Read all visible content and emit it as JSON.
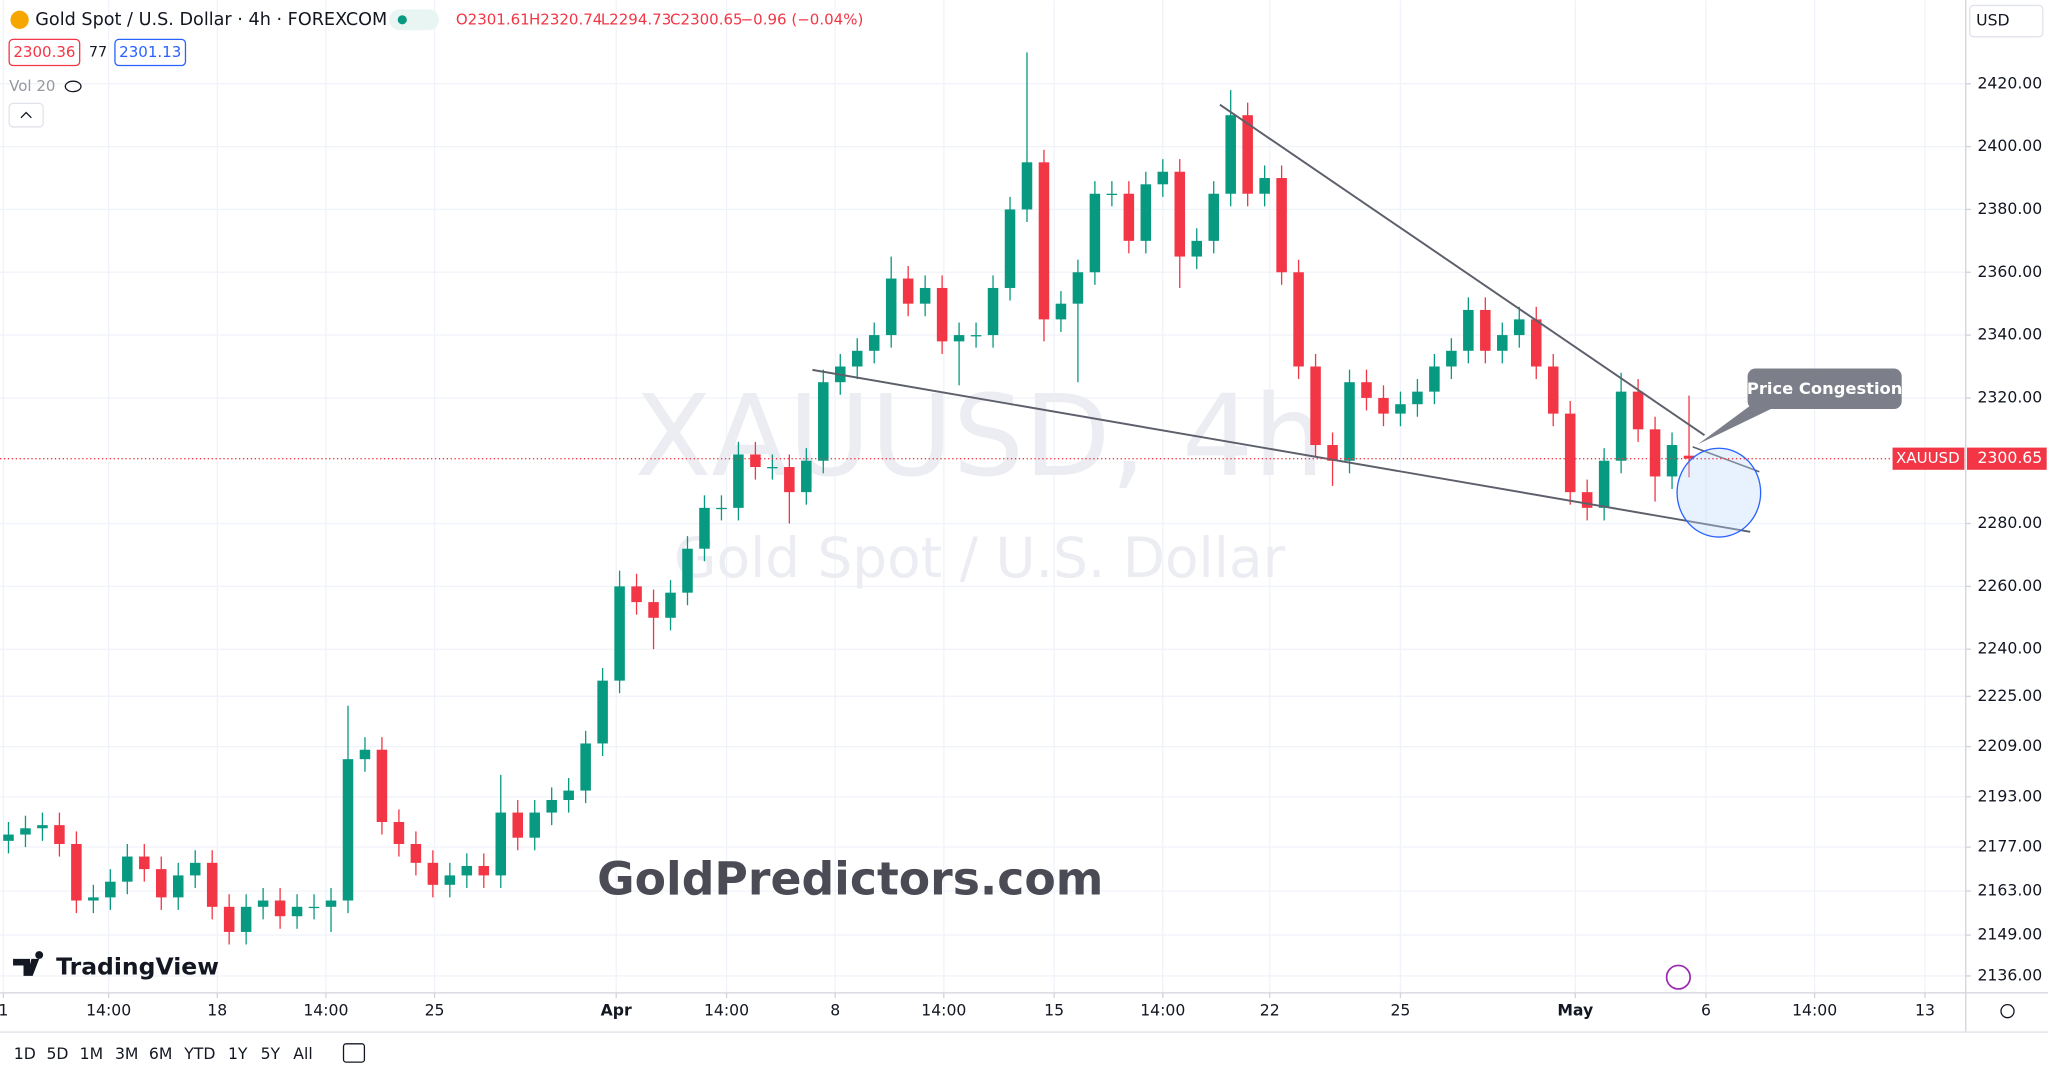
{
  "header": {
    "symbol": "Gold Spot / U.S. Dollar · 4h · FOREXCOM",
    "open": "O2301.61",
    "high": "H2320.74",
    "low": "L2294.73",
    "close": "C2300.65",
    "change": "−0.96 (−0.04%)",
    "bid": "2300.36",
    "spread": "77",
    "ask": "2301.13",
    "volume": "Vol 20"
  },
  "watermark": {
    "symbol": "XAUUSD, 4h",
    "description": "Gold Spot / U.S. Dollar"
  },
  "branding": {
    "site": "GoldPredictors.com",
    "logo": "TradingView"
  },
  "toolbar": {
    "ranges": [
      "1D",
      "5D",
      "1M",
      "3M",
      "6M",
      "YTD",
      "1Y",
      "5Y",
      "All"
    ]
  },
  "chart_data": {
    "type": "candlestick",
    "open": [
      2179,
      2181,
      2183,
      2184,
      2178,
      2160,
      2161,
      2166,
      2174,
      2170,
      2161,
      2168,
      2172,
      2158,
      2150,
      2158,
      2160,
      2155,
      2158,
      2158,
      2160,
      2205,
      2208,
      2185,
      2178,
      2172,
      2165,
      2168,
      2171,
      2168,
      2188,
      2180,
      2188,
      2192,
      2195,
      2210,
      2230,
      2260,
      2255,
      2250,
      2258,
      2272,
      2285,
      2285,
      2302,
      2298,
      2298,
      2290,
      2300,
      2325,
      2330,
      2335,
      2340,
      2358,
      2350,
      2355,
      2338,
      2340,
      2340,
      2355,
      2380,
      2395,
      2345,
      2350,
      2360,
      2385,
      2385,
      2370,
      2388,
      2392,
      2365,
      2370,
      2385,
      2410,
      2385,
      2390,
      2360,
      2330,
      2305,
      2300,
      2325,
      2320,
      2315,
      2318,
      2322,
      2330,
      2335,
      2348,
      2335,
      2340,
      2345,
      2330,
      2315,
      2290,
      2285,
      2300,
      2322,
      2310,
      2295,
      2301.61
    ],
    "high": [
      2185,
      2187,
      2188,
      2188,
      2182,
      2165,
      2170,
      2178,
      2178,
      2174,
      2172,
      2176,
      2176,
      2162,
      2162,
      2164,
      2164,
      2162,
      2162,
      2164,
      2222,
      2212,
      2212,
      2189,
      2182,
      2176,
      2172,
      2175,
      2175,
      2200,
      2192,
      2192,
      2196,
      2199,
      2214,
      2234,
      2265,
      2264,
      2259,
      2262,
      2276,
      2289,
      2289,
      2306,
      2306,
      2302,
      2302,
      2304,
      2329,
      2334,
      2339,
      2344,
      2365,
      2362,
      2359,
      2359,
      2344,
      2344,
      2359,
      2384,
      2430,
      2399,
      2354,
      2364,
      2389,
      2389,
      2389,
      2392,
      2396,
      2396,
      2374,
      2389,
      2418,
      2414,
      2394,
      2394,
      2364,
      2334,
      2309,
      2329,
      2329,
      2324,
      2322,
      2326,
      2334,
      2339,
      2352,
      2352,
      2344,
      2349,
      2349,
      2334,
      2319,
      2294,
      2304,
      2328,
      2326,
      2314,
      2309,
      2320.74
    ],
    "low": [
      2175,
      2177,
      2179,
      2174,
      2156,
      2156,
      2157,
      2162,
      2166,
      2157,
      2157,
      2164,
      2154,
      2146,
      2146,
      2154,
      2151,
      2151,
      2154,
      2150,
      2156,
      2201,
      2181,
      2174,
      2168,
      2161,
      2161,
      2164,
      2164,
      2164,
      2176,
      2176,
      2184,
      2188,
      2191,
      2206,
      2226,
      2251,
      2240,
      2246,
      2254,
      2268,
      2281,
      2281,
      2294,
      2294,
      2280,
      2286,
      2296,
      2321,
      2326,
      2331,
      2336,
      2346,
      2346,
      2334,
      2324,
      2336,
      2336,
      2351,
      2376,
      2338,
      2341,
      2325,
      2356,
      2381,
      2366,
      2366,
      2384,
      2355,
      2361,
      2366,
      2381,
      2381,
      2381,
      2356,
      2326,
      2301,
      2292,
      2296,
      2316,
      2311,
      2311,
      2314,
      2318,
      2326,
      2331,
      2331,
      2331,
      2336,
      2326,
      2311,
      2286,
      2281,
      2281,
      2296,
      2306,
      2287,
      2291,
      2294.73
    ],
    "close": [
      2181,
      2183,
      2184,
      2178,
      2160,
      2161,
      2166,
      2174,
      2170,
      2161,
      2168,
      2172,
      2158,
      2150,
      2158,
      2160,
      2155,
      2158,
      2158,
      2160,
      2205,
      2208,
      2185,
      2178,
      2172,
      2165,
      2168,
      2171,
      2168,
      2188,
      2180,
      2188,
      2192,
      2195,
      2210,
      2230,
      2260,
      2255,
      2250,
      2258,
      2272,
      2285,
      2285,
      2302,
      2298,
      2298,
      2290,
      2300,
      2325,
      2330,
      2335,
      2340,
      2358,
      2350,
      2355,
      2338,
      2340,
      2340,
      2355,
      2380,
      2395,
      2345,
      2350,
      2360,
      2385,
      2385,
      2370,
      2388,
      2392,
      2365,
      2370,
      2385,
      2410,
      2385,
      2390,
      2360,
      2330,
      2305,
      2300,
      2325,
      2320,
      2315,
      2318,
      2322,
      2330,
      2335,
      2348,
      2335,
      2340,
      2345,
      2330,
      2315,
      2290,
      2285,
      2300,
      2322,
      2310,
      2295,
      2305,
      2300.65
    ],
    "up_color": "#089981",
    "down_color": "#f23645",
    "grid": true,
    "ylim": [
      2130.6,
      2446.6
    ],
    "yticks": [
      {
        "value": 2420,
        "label": "2420.00"
      },
      {
        "value": 2400,
        "label": "2400.00"
      },
      {
        "value": 2380,
        "label": "2380.00"
      },
      {
        "value": 2360,
        "label": "2360.00"
      },
      {
        "value": 2340,
        "label": "2340.00"
      },
      {
        "value": 2320,
        "label": "2320.00"
      },
      {
        "value": 2280,
        "label": "2280.00"
      },
      {
        "value": 2260,
        "label": "2260.00"
      },
      {
        "value": 2240,
        "label": "2240.00"
      },
      {
        "value": 2225,
        "label": "2225.00"
      },
      {
        "value": 2209,
        "label": "2209.00"
      },
      {
        "value": 2193,
        "label": "2193.00"
      },
      {
        "value": 2177,
        "label": "2177.00"
      },
      {
        "value": 2163,
        "label": "2163.00"
      },
      {
        "value": 2149,
        "label": "2149.00"
      },
      {
        "value": 2136,
        "label": "2136.00"
      }
    ],
    "xlim": [
      0,
      115.8
    ],
    "xticks": [
      {
        "value": 0.2,
        "label": "1"
      },
      {
        "value": 6.4,
        "label": "14:00"
      },
      {
        "value": 12.8,
        "label": "18"
      },
      {
        "value": 19.2,
        "label": "14:00"
      },
      {
        "value": 25.6,
        "label": "25"
      },
      {
        "value": 36.3,
        "label": "Apr"
      },
      {
        "value": 42.8,
        "label": "14:00"
      },
      {
        "value": 49.2,
        "label": "8"
      },
      {
        "value": 55.6,
        "label": "14:00"
      },
      {
        "value": 62.1,
        "label": "15"
      },
      {
        "value": 68.5,
        "label": "14:00"
      },
      {
        "value": 74.8,
        "label": "22"
      },
      {
        "value": 82.5,
        "label": "25"
      },
      {
        "value": 92.8,
        "label": "May"
      },
      {
        "value": 100.5,
        "label": "6"
      },
      {
        "value": 106.9,
        "label": "14:00"
      },
      {
        "value": 113.4,
        "label": "13"
      }
    ],
    "last_price": 2300.65,
    "price_tag": "XAUUSD",
    "currency": "USD",
    "annotation": "Price Congestion"
  }
}
